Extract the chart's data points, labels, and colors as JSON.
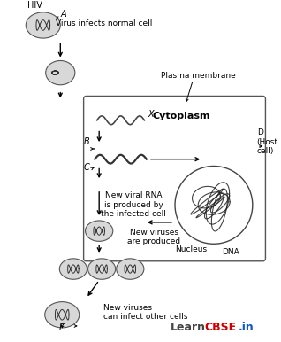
{
  "title": "",
  "background": "#ffffff",
  "fig_width": 3.18,
  "fig_height": 3.86,
  "dpi": 100,
  "watermark_learn": "Learn",
  "watermark_cbse": "CBSE",
  "watermark_in": ".in",
  "labels": {
    "HIV": "HIV",
    "A": "A",
    "virus_infects": "Virus infects normal cell",
    "plasma_membrane": "Plasma membrane",
    "D_host": "D\n(Host\ncell)",
    "X": "X",
    "cytoplasm": "Cytoplasm",
    "B": "B",
    "C": "C",
    "new_viral_rna": "New viral RNA\nis produced by\nthe infected cell",
    "nucleus": "Nucleus",
    "DNA": "DNA",
    "new_viruses_produced": "New viruses\nare produced",
    "new_viruses_infect": "New viruses\ncan infect other cells",
    "E": "E"
  },
  "colors": {
    "black": "#000000",
    "gray": "#888888",
    "light_gray": "#cccccc",
    "white": "#ffffff",
    "red": "#cc0000",
    "dark_red": "#aa0000",
    "cell_fill": "#e8e8e8",
    "box_border": "#444444"
  }
}
